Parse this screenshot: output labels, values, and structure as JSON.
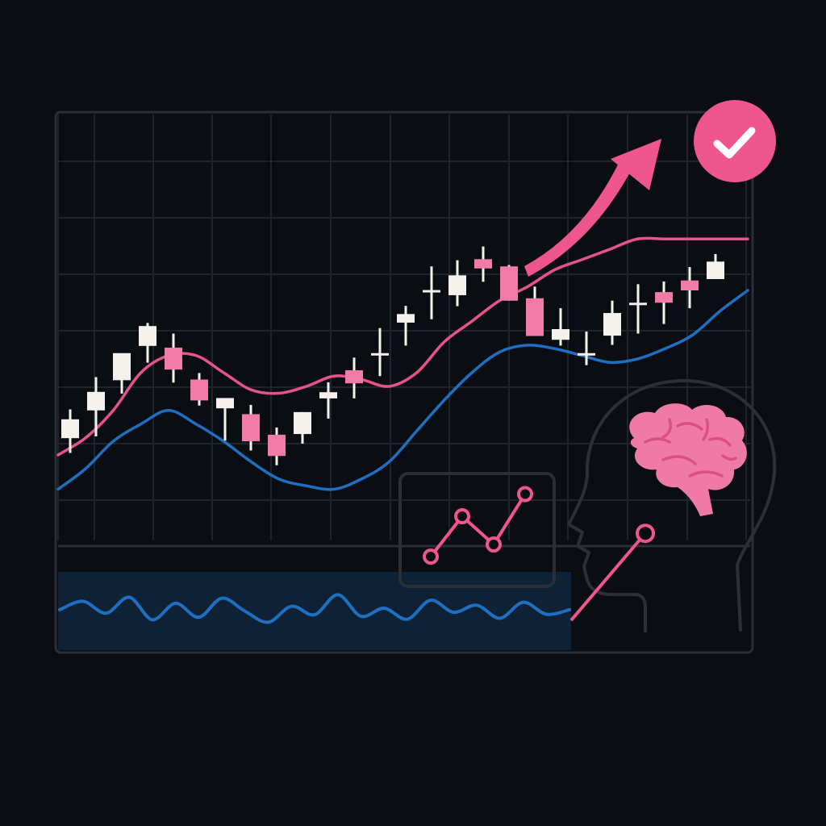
{
  "colors": {
    "background": "#0a0e13",
    "panel_border": "#2a2f36",
    "grid": "#1e242b",
    "bull_candle": "#f5f1ec",
    "bear_candle": "#f27ba6",
    "wick": "#f5f1ec",
    "pink_line": "#e8528a",
    "blue_line": "#1e6fc2",
    "oscillator_fill": "#0f2235",
    "accent": "#f0568e",
    "head_outline": "#2b3038",
    "brain": "#f07aa6",
    "brain_folds": "#d94f86",
    "check": "#ffffff"
  },
  "icons": {
    "badge": "check-icon",
    "trend": "trend-up-arrow-icon",
    "head": "human-head-icon",
    "brain": "brain-icon",
    "mini_chart": "line-chart-icon"
  },
  "chart_data": {
    "type": "candlestick",
    "title": "",
    "xlabel": "",
    "ylabel": "",
    "grid": true,
    "ylim": [
      0,
      100
    ],
    "candles": [
      {
        "open": 28.9,
        "high": 37.3,
        "low": 24.6,
        "close": 34.4
      },
      {
        "open": 37.0,
        "high": 46.7,
        "low": 29.4,
        "close": 42.4
      },
      {
        "open": 45.8,
        "high": 52.8,
        "low": 41.9,
        "close": 53.7
      },
      {
        "open": 55.8,
        "high": 62.5,
        "low": 50.9,
        "close": 61.6
      },
      {
        "open": 55.3,
        "high": 59.4,
        "low": 45.1,
        "close": 48.9
      },
      {
        "open": 46.0,
        "high": 47.9,
        "low": 38.4,
        "close": 39.9
      },
      {
        "open": 37.6,
        "high": 40.6,
        "low": 28.2,
        "close": 40.6
      },
      {
        "open": 35.9,
        "high": 38.6,
        "low": 25.3,
        "close": 28.0
      },
      {
        "open": 29.9,
        "high": 32.0,
        "low": 21.0,
        "close": 23.7
      },
      {
        "open": 30.1,
        "high": 36.5,
        "low": 27.3,
        "close": 36.5
      },
      {
        "open": 40.5,
        "high": 45.2,
        "low": 34.6,
        "close": 42.3
      },
      {
        "open": 48.7,
        "high": 52.4,
        "low": 40.5,
        "close": 44.9
      },
      {
        "open": 53.7,
        "high": 61.0,
        "low": 47.0,
        "close": 53.7
      },
      {
        "open": 62.6,
        "high": 67.5,
        "low": 55.9,
        "close": 65.1
      },
      {
        "open": 72.1,
        "high": 79.0,
        "low": 63.6,
        "close": 72.1
      },
      {
        "open": 70.6,
        "high": 80.8,
        "low": 67.4,
        "close": 76.4
      },
      {
        "open": 81.1,
        "high": 84.8,
        "low": 74.5,
        "close": 78.4
      },
      {
        "open": 79.0,
        "high": 79.4,
        "low": 69.0,
        "close": 69.0
      },
      {
        "open": 69.7,
        "high": 73.1,
        "low": 58.7,
        "close": 58.7
      },
      {
        "open": 57.6,
        "high": 66.8,
        "low": 55.9,
        "close": 60.7
      },
      {
        "open": 53.7,
        "high": 60.0,
        "low": 50.2,
        "close": 53.7
      },
      {
        "open": 58.8,
        "high": 69.0,
        "low": 56.1,
        "close": 65.4
      },
      {
        "open": 68.4,
        "high": 73.8,
        "low": 59.4,
        "close": 68.4
      },
      {
        "open": 71.5,
        "high": 74.6,
        "low": 62.2,
        "close": 68.4
      },
      {
        "open": 74.9,
        "high": 78.8,
        "low": 66.8,
        "close": 72.0
      },
      {
        "open": 75.3,
        "high": 82.6,
        "low": 75.3,
        "close": 80.4
      }
    ],
    "series": [
      {
        "color": "#e8528a",
        "values": [
          24,
          29,
          37,
          48,
          53,
          53,
          48,
          43,
          42,
          44,
          47,
          46,
          44,
          48,
          57,
          63,
          69,
          73,
          78,
          81,
          84,
          87,
          87,
          87,
          87,
          87
        ]
      },
      {
        "color": "#1e6fc2",
        "values": [
          14,
          20,
          28,
          33,
          37,
          33,
          28,
          22,
          17,
          15,
          14,
          17,
          22,
          31,
          40,
          48,
          54,
          56,
          55,
          53,
          51,
          52,
          55,
          59,
          66,
          72
        ]
      }
    ],
    "oscillator": [
      55,
      72,
      48,
      80,
      35,
      68,
      40,
      78,
      52,
      30,
      62,
      45,
      85,
      42,
      58,
      36,
      74,
      50,
      64,
      38,
      70,
      46,
      55
    ]
  },
  "illustration": {
    "mini_chart_points": [
      [
        0,
        0
      ],
      [
        1,
        2.0
      ],
      [
        2,
        0.6
      ],
      [
        3,
        3.1
      ]
    ],
    "connector_points": [
      [
        0,
        0
      ],
      [
        1,
        2.2
      ]
    ]
  }
}
